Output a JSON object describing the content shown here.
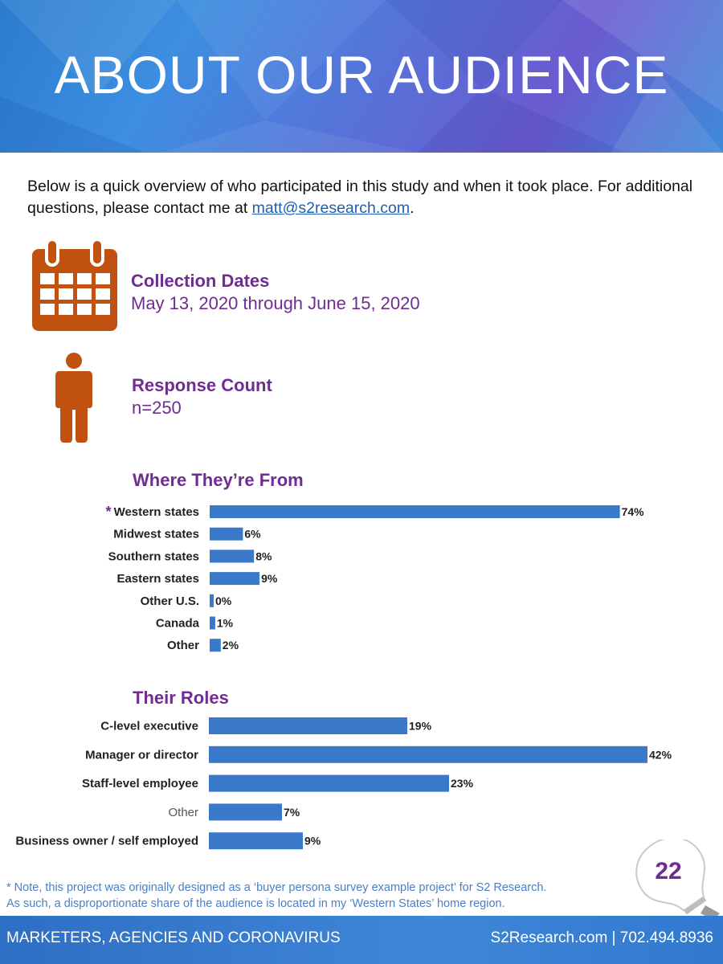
{
  "header": {
    "title": "ABOUT OUR AUDIENCE"
  },
  "intro": {
    "text_before": "Below is a quick overview of who participated in this study and when it took place. For additional questions, please contact me at ",
    "email": "matt@s2research.com",
    "text_after": "."
  },
  "collection": {
    "label": "Collection Dates",
    "value": "May 13, 2020 through June 15, 2020",
    "icon": "calendar-icon"
  },
  "responses": {
    "label": "Response Count",
    "value": "n=250",
    "icon": "person-icon"
  },
  "colors": {
    "accent": "#6f2c91",
    "bar": "#3a78c9",
    "icon": "#c0510f"
  },
  "chart_data": [
    {
      "type": "bar",
      "orientation": "horizontal",
      "title": "Where They’re From",
      "categories": [
        "Western states",
        "Midwest states",
        "Southern states",
        "Eastern states",
        "Other U.S.",
        "Canada",
        "Other"
      ],
      "values": [
        74,
        6,
        8,
        9,
        0,
        1,
        2
      ],
      "value_labels": [
        "74%",
        "6%",
        "8%",
        "9%",
        "0%",
        "1%",
        "2%"
      ],
      "marker": "*",
      "grid": false
    },
    {
      "type": "bar",
      "orientation": "horizontal",
      "title": "Their Roles",
      "categories": [
        "C-level executive",
        "Manager or director",
        "Staff-level employee",
        "Other",
        "Business owner / self employed"
      ],
      "values": [
        19,
        42,
        23,
        7,
        9
      ],
      "value_labels": [
        "19%",
        "42%",
        "23%",
        "7%",
        "9%"
      ],
      "grid": false
    }
  ],
  "note": {
    "line1": "* Note, this project was originally designed as a ‘buyer persona survey example project’ for S2 Research.",
    "line2": "As such, a disproportionate share of the audience is located in my ‘Western States’ home region."
  },
  "page_number": "22",
  "footer": {
    "left": "MARKETERS, AGENCIES AND CORONAVIRUS",
    "right": "S2Research.com | 702.494.8936"
  }
}
